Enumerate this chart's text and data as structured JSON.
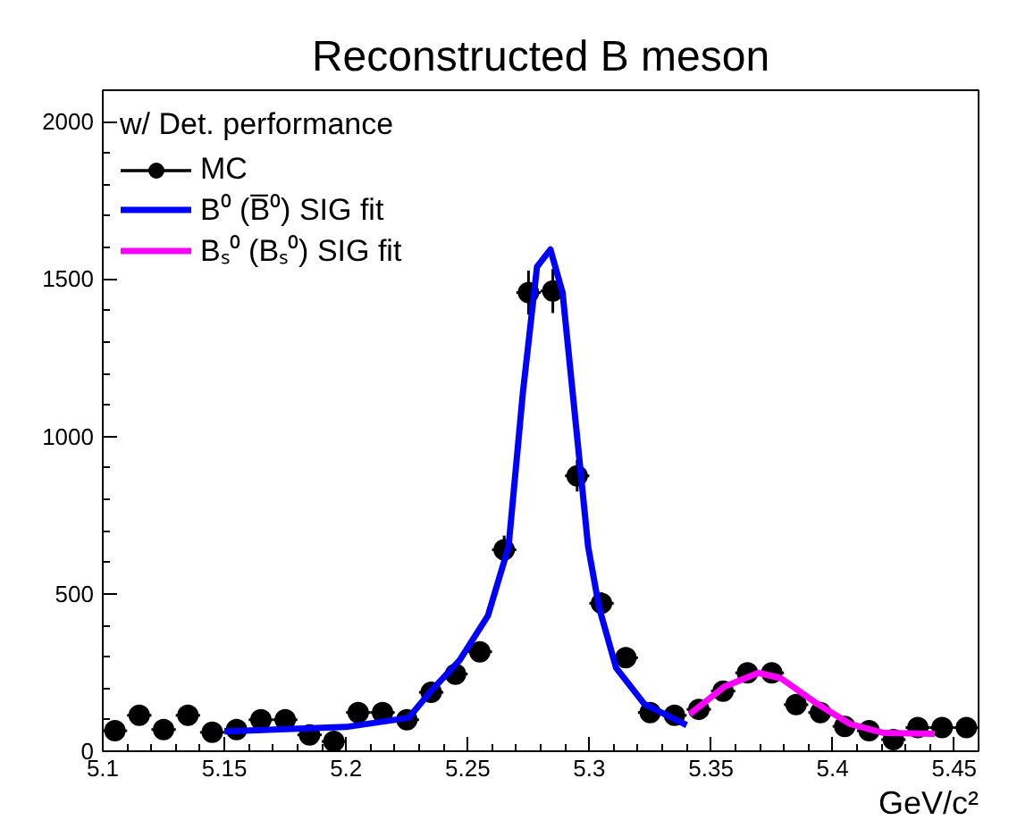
{
  "chart_data": {
    "type": "scatter",
    "title": "Reconstructed B meson",
    "xlabel": "GeV/c²",
    "legend_title": "w/ Det. performance",
    "legend": "top left",
    "grid": false,
    "xlim": [
      5.1,
      5.46
    ],
    "xticks": [
      5.1,
      5.15,
      5.2,
      5.25,
      5.3,
      5.35,
      5.4,
      5.45
    ],
    "ylim": [
      0,
      2100
    ],
    "yticks": [
      0,
      500,
      1000,
      1500,
      2000
    ],
    "series": [
      {
        "name": "MC",
        "marker": "circle",
        "color": "#000000",
        "x": [
          5.105,
          5.115,
          5.125,
          5.135,
          5.145,
          5.155,
          5.165,
          5.175,
          5.185,
          5.195,
          5.205,
          5.215,
          5.225,
          5.235,
          5.245,
          5.255,
          5.265,
          5.275,
          5.285,
          5.295,
          5.305,
          5.315,
          5.325,
          5.335,
          5.345,
          5.355,
          5.365,
          5.375,
          5.385,
          5.395,
          5.405,
          5.415,
          5.425,
          5.435,
          5.445,
          5.455
        ],
        "values": [
          65,
          114,
          69,
          114,
          60,
          69,
          100,
          100,
          52,
          31,
          123,
          123,
          100,
          187,
          245,
          316,
          640,
          1457,
          1462,
          875,
          470,
          297,
          123,
          114,
          133,
          191,
          249,
          249,
          148,
          123,
          79,
          65,
          37,
          75,
          75,
          75
        ],
        "errors": [
          15,
          15,
          15,
          15,
          15,
          15,
          15,
          15,
          15,
          15,
          15,
          15,
          15,
          25,
          25,
          25,
          45,
          70,
          70,
          50,
          35,
          25,
          15,
          15,
          15,
          25,
          25,
          25,
          15,
          15,
          15,
          15,
          15,
          15,
          15,
          15
        ],
        "xerrors": [
          0.005,
          0.005,
          0.005,
          0.005,
          0.005,
          0.005,
          0.005,
          0.005,
          0.005,
          0.005,
          0.005,
          0.005,
          0.005,
          0.005,
          0.005,
          0.005,
          0.005,
          0.005,
          0.005,
          0.005,
          0.005,
          0.005,
          0.005,
          0.005,
          0.005,
          0.005,
          0.005,
          0.005,
          0.005,
          0.005,
          0.005,
          0.005,
          0.005,
          0.005,
          0.005,
          0.005
        ]
      },
      {
        "name": "B⁰ (B̅⁰) SIG fit",
        "type": "line",
        "line_style": "solid",
        "color": "#0000ff",
        "x": [
          5.15,
          5.2,
          5.2257,
          5.235,
          5.2467,
          5.2583,
          5.2668,
          5.2727,
          5.2785,
          5.284,
          5.289,
          5.2948,
          5.2995,
          5.304,
          5.311,
          5.3226,
          5.34
        ],
        "values": [
          63,
          77,
          106,
          192,
          289,
          430,
          650,
          1140,
          1539,
          1594,
          1457,
          1013,
          650,
          457,
          265,
          150,
          83
        ]
      },
      {
        "name": "Bₛ⁰ (Bₛ⁰) SIG fit",
        "type": "line",
        "line_style": "solid",
        "color": "#ff00ff",
        "x": [
          5.3413,
          5.3555,
          5.3695,
          5.3787,
          5.393,
          5.407,
          5.421,
          5.442
        ],
        "values": [
          118,
          205,
          249,
          232,
          154,
          87,
          58,
          55
        ]
      }
    ]
  }
}
